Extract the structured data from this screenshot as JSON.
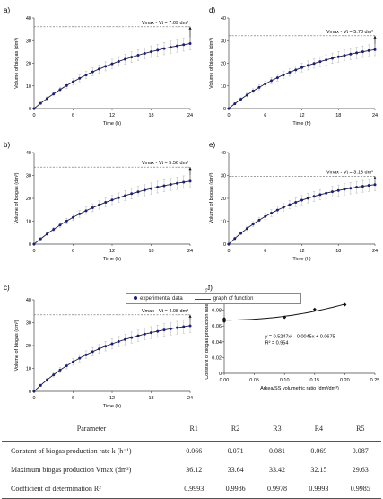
{
  "chart_data": [
    {
      "panel": "a)",
      "type": "line",
      "xlabel": "Time (h)",
      "ylabel": "Volume of biogas (dm³)",
      "xlim": [
        0,
        24
      ],
      "ylim": [
        0,
        40
      ],
      "xticks": [
        "0",
        "6",
        "12",
        "18",
        "24"
      ],
      "yticks": [
        "0",
        "10",
        "20",
        "30",
        "40"
      ],
      "vmax": 36.12,
      "k": 0.066,
      "vlast": 29.0,
      "annotation": "Vmax - Vt = 7.09 dm³"
    },
    {
      "panel": "b)",
      "type": "line",
      "xlabel": "Time (h)",
      "ylabel": "Volume of biogas (dm³)",
      "xlim": [
        0,
        24
      ],
      "ylim": [
        0,
        40
      ],
      "xticks": [
        "0",
        "6",
        "12",
        "18",
        "24"
      ],
      "yticks": [
        "0",
        "10",
        "20",
        "30",
        "40"
      ],
      "vmax": 33.64,
      "k": 0.071,
      "vlast": 28.1,
      "annotation": "Vmax - Vt = 5.56 dm³"
    },
    {
      "panel": "c)",
      "type": "line",
      "xlabel": "Time (h)",
      "ylabel": "Volume of biogas (dm³)",
      "xlim": [
        0,
        24
      ],
      "ylim": [
        0,
        40
      ],
      "xticks": [
        "0",
        "6",
        "12",
        "18",
        "24"
      ],
      "yticks": [
        "0",
        "10",
        "20",
        "30",
        "40"
      ],
      "vmax": 33.42,
      "k": 0.081,
      "vlast": 29.3,
      "annotation": "Vmax - Vt = 4.08 dm³"
    },
    {
      "panel": "d)",
      "type": "line",
      "xlabel": "Time (h)",
      "ylabel": "Volume of biogas (dm³)",
      "xlim": [
        0,
        24
      ],
      "ylim": [
        0,
        40
      ],
      "xticks": [
        "0",
        "6",
        "12",
        "18",
        "24"
      ],
      "yticks": [
        "0",
        "10",
        "20",
        "30",
        "40"
      ],
      "vmax": 32.15,
      "k": 0.069,
      "vlast": 26.4,
      "annotation": "Vmax - Vt = 5.78 dm³"
    },
    {
      "panel": "e)",
      "type": "line",
      "xlabel": "Time (h)",
      "ylabel": "Volume of biogas (dm³)",
      "xlim": [
        0,
        24
      ],
      "ylim": [
        0,
        40
      ],
      "xticks": [
        "0",
        "6",
        "12",
        "18",
        "24"
      ],
      "yticks": [
        "0",
        "10",
        "20",
        "30",
        "40"
      ],
      "vmax": 29.63,
      "k": 0.087,
      "vlast": 26.5,
      "annotation": "Vmax - Vt = 3.13 dm³"
    },
    {
      "panel": "f)",
      "type": "scatter",
      "xlabel": "Arkea/SS volumetric ratio (dm³/dm³)",
      "ylabel": "Constant of biogas production rate k (h⁻¹)",
      "xlim": [
        0,
        0.25
      ],
      "ylim": [
        0,
        0.1
      ],
      "xticks": [
        "0.00",
        "0.05",
        "0.10",
        "0.15",
        "0.20",
        "0.25"
      ],
      "yticks": [
        "0",
        "0.02",
        "0.04",
        "0.06",
        "0.08",
        "0.1"
      ],
      "x": [
        0,
        0,
        0.1,
        0.15,
        0.2
      ],
      "y": [
        0.066,
        0.069,
        0.071,
        0.081,
        0.087
      ],
      "fit": {
        "a": 0.5247,
        "b": -0.0045,
        "c": 0.0675
      },
      "equation": "y = 0.5247x² - 0.0045x + 0.0675",
      "r2": "R² = 0.954"
    }
  ],
  "legend": {
    "experimental": "experimental data",
    "function": "graph of function"
  },
  "table": {
    "header": [
      "Parameter",
      "R1",
      "R2",
      "R3",
      "R4",
      "R5"
    ],
    "rows": [
      {
        "label": "Constant of biogas production rate k (h⁻¹)",
        "values": [
          "0.066",
          "0.071",
          "0.081",
          "0.069",
          "0.087"
        ]
      },
      {
        "label": "Maximum biogas production Vmax (dm³)",
        "values": [
          "36.12",
          "33.64",
          "33.42",
          "32.15",
          "29.63"
        ]
      },
      {
        "label": "Coefficient of determination R²",
        "values": [
          "0.9993",
          "0.9986",
          "0.9978",
          "0.9993",
          "0.9985"
        ]
      }
    ]
  },
  "colors": {
    "series": "#1a1f7a",
    "error": "#b5b5b5",
    "axis": "#444444"
  }
}
